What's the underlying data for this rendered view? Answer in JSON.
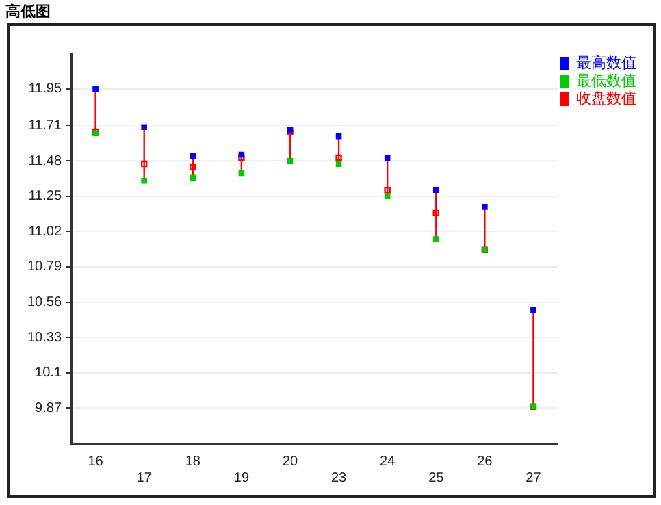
{
  "chart_data": {
    "type": "scatter",
    "title": "高低图",
    "categories": [
      "16",
      "17",
      "18",
      "19",
      "20",
      "23",
      "24",
      "25",
      "26",
      "27"
    ],
    "series": [
      {
        "name": "最高数值",
        "color": "#0000ff",
        "marker": "square",
        "values": [
          11.95,
          11.7,
          11.51,
          11.52,
          11.68,
          11.64,
          11.5,
          11.29,
          11.18,
          10.51
        ]
      },
      {
        "name": "最低数值",
        "color": "#00cc00",
        "marker": "square",
        "values": [
          11.66,
          11.35,
          11.37,
          11.4,
          11.48,
          11.46,
          11.25,
          10.97,
          10.9,
          9.88
        ]
      },
      {
        "name": "收盘数值",
        "color": "#ff0000",
        "marker": "square",
        "values": [
          11.67,
          11.46,
          11.44,
          11.5,
          11.67,
          11.5,
          11.29,
          11.14,
          10.9,
          9.88
        ]
      }
    ],
    "ylim": [
      9.64,
      12.18
    ],
    "yticks": [
      9.87,
      10.1,
      10.33,
      10.56,
      10.79,
      11.02,
      11.25,
      11.48,
      11.71,
      11.95
    ],
    "grid": "y",
    "legend": "right"
  }
}
